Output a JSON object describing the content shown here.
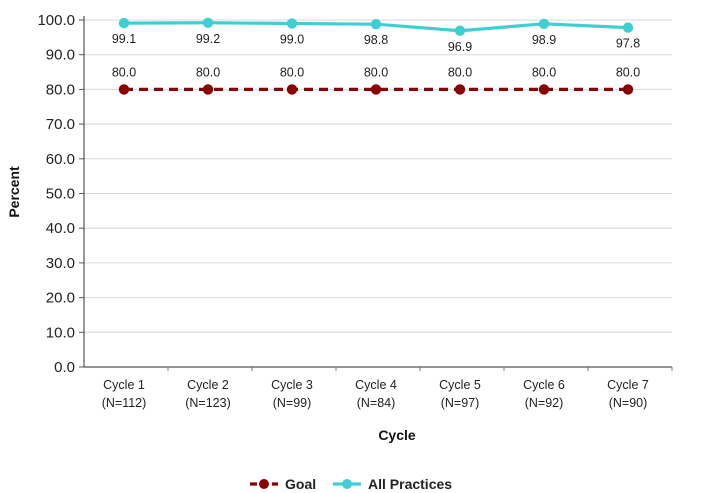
{
  "chart_data": {
    "type": "line",
    "xlabel": "Cycle",
    "ylabel": "Percent",
    "ylim": [
      0,
      100
    ],
    "y_ticks": [
      "0.0",
      "10.0",
      "20.0",
      "30.0",
      "40.0",
      "50.0",
      "60.0",
      "70.0",
      "80.0",
      "90.0",
      "100.0"
    ],
    "categories": [
      {
        "name": "Cycle 1",
        "n": "(N=112)"
      },
      {
        "name": "Cycle 2",
        "n": "(N=123)"
      },
      {
        "name": "Cycle 3",
        "n": "(N=99)"
      },
      {
        "name": "Cycle 4",
        "n": "(N=84)"
      },
      {
        "name": "Cycle 5",
        "n": "(N=97)"
      },
      {
        "name": "Cycle 6",
        "n": "(N=92)"
      },
      {
        "name": "Cycle 7",
        "n": "(N=90)"
      }
    ],
    "series": [
      {
        "name": "Goal",
        "color": "#8b0000",
        "style": "dashed",
        "values": [
          80.0,
          80.0,
          80.0,
          80.0,
          80.0,
          80.0,
          80.0
        ],
        "labels": [
          "80.0",
          "80.0",
          "80.0",
          "80.0",
          "80.0",
          "80.0",
          "80.0"
        ]
      },
      {
        "name": "All Practices",
        "color": "#3fcfd2",
        "style": "solid",
        "values": [
          99.1,
          99.2,
          99.0,
          98.8,
          96.9,
          98.9,
          97.8
        ],
        "labels": [
          "99.1",
          "99.2",
          "99.0",
          "98.8",
          "96.9",
          "98.9",
          "97.8"
        ]
      }
    ],
    "grid": true,
    "legend_position": "bottom-center"
  }
}
